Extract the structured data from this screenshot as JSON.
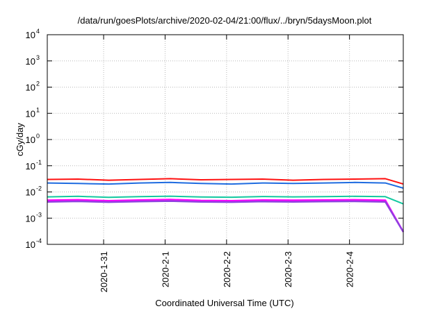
{
  "chart_data": {
    "type": "line",
    "title": "/data/run/goesPlots/archive/2020-02-04/21:00/flux/../bryn/5daysMoon.plot",
    "xlabel": "Coordinated Universal Time (UTC)",
    "ylabel": "cGy/day",
    "y_scale": "log",
    "ylim": [
      0.0001,
      10000
    ],
    "y_ticks": [
      {
        "base": "10",
        "exp": "-4",
        "value": 0.0001
      },
      {
        "base": "10",
        "exp": "-3",
        "value": 0.001
      },
      {
        "base": "10",
        "exp": "-2",
        "value": 0.01
      },
      {
        "base": "10",
        "exp": "-1",
        "value": 0.1
      },
      {
        "base": "10",
        "exp": "0",
        "value": 1
      },
      {
        "base": "10",
        "exp": "1",
        "value": 10
      },
      {
        "base": "10",
        "exp": "2",
        "value": 100
      },
      {
        "base": "10",
        "exp": "3",
        "value": 1000
      },
      {
        "base": "10",
        "exp": "4",
        "value": 10000
      }
    ],
    "xlim": [
      "2020-01-30T02:00",
      "2020-02-04T21:00"
    ],
    "x_ticks": [
      {
        "label": "2020-1-31",
        "value": "2020-01-31T00:00"
      },
      {
        "label": "2020-2-1",
        "value": "2020-02-01T00:00"
      },
      {
        "label": "2020-2-2",
        "value": "2020-02-02T00:00"
      },
      {
        "label": "2020-2-3",
        "value": "2020-02-03T00:00"
      },
      {
        "label": "2020-2-4",
        "value": "2020-02-04T00:00"
      }
    ],
    "grid": true,
    "legend": "none",
    "colors": {
      "red": "#ff1010",
      "blue": "#1e6be0",
      "teal": "#12c8a0",
      "magenta": "#ff00ff",
      "purple": "#9040e0"
    },
    "series": [
      {
        "color": "#ff1010",
        "x": [
          "2020-01-30T02:00",
          "2020-01-30T14:00",
          "2020-01-31T02:00",
          "2020-01-31T14:00",
          "2020-02-01T02:00",
          "2020-02-01T14:00",
          "2020-02-02T02:00",
          "2020-02-02T14:00",
          "2020-02-03T02:00",
          "2020-02-03T14:00",
          "2020-02-04T02:00",
          "2020-02-04T14:00",
          "2020-02-04T21:00"
        ],
        "values": [
          0.03,
          0.031,
          0.028,
          0.03,
          0.032,
          0.029,
          0.03,
          0.031,
          0.028,
          0.03,
          0.031,
          0.032,
          0.02
        ]
      },
      {
        "color": "#1e6be0",
        "x": [
          "2020-01-30T02:00",
          "2020-01-30T14:00",
          "2020-01-31T02:00",
          "2020-01-31T14:00",
          "2020-02-01T02:00",
          "2020-02-01T14:00",
          "2020-02-02T02:00",
          "2020-02-02T14:00",
          "2020-02-03T02:00",
          "2020-02-03T14:00",
          "2020-02-04T02:00",
          "2020-02-04T14:00",
          "2020-02-04T21:00"
        ],
        "values": [
          0.022,
          0.021,
          0.02,
          0.022,
          0.023,
          0.021,
          0.02,
          0.022,
          0.021,
          0.022,
          0.023,
          0.022,
          0.014
        ]
      },
      {
        "color": "#12c8a0",
        "x": [
          "2020-01-30T02:00",
          "2020-01-30T14:00",
          "2020-01-31T02:00",
          "2020-01-31T14:00",
          "2020-02-01T02:00",
          "2020-02-01T14:00",
          "2020-02-02T02:00",
          "2020-02-02T14:00",
          "2020-02-03T02:00",
          "2020-02-03T14:00",
          "2020-02-04T02:00",
          "2020-02-04T14:00",
          "2020-02-04T21:00"
        ],
        "values": [
          0.0065,
          0.0068,
          0.0062,
          0.0066,
          0.0069,
          0.0064,
          0.0063,
          0.0067,
          0.0065,
          0.0066,
          0.0068,
          0.0066,
          0.0035
        ]
      },
      {
        "color": "#ff00ff",
        "x": [
          "2020-01-30T02:00",
          "2020-01-30T14:00",
          "2020-01-31T02:00",
          "2020-01-31T14:00",
          "2020-02-01T02:00",
          "2020-02-01T14:00",
          "2020-02-02T02:00",
          "2020-02-02T14:00",
          "2020-02-03T02:00",
          "2020-02-03T14:00",
          "2020-02-04T02:00",
          "2020-02-04T14:00",
          "2020-02-04T21:00"
        ],
        "values": [
          0.0048,
          0.005,
          0.0046,
          0.0049,
          0.0051,
          0.0047,
          0.0046,
          0.0049,
          0.0048,
          0.0049,
          0.005,
          0.0048,
          0.0003
        ]
      },
      {
        "color": "#9040e0",
        "x": [
          "2020-01-30T02:00",
          "2020-01-30T14:00",
          "2020-01-31T02:00",
          "2020-01-31T14:00",
          "2020-02-01T02:00",
          "2020-02-01T14:00",
          "2020-02-02T02:00",
          "2020-02-02T14:00",
          "2020-02-03T02:00",
          "2020-02-03T14:00",
          "2020-02-04T02:00",
          "2020-02-04T14:00",
          "2020-02-04T21:00"
        ],
        "values": [
          0.0042,
          0.0044,
          0.0041,
          0.0043,
          0.0045,
          0.0042,
          0.0041,
          0.0043,
          0.0042,
          0.0043,
          0.0044,
          0.0042,
          0.0003
        ]
      }
    ]
  }
}
